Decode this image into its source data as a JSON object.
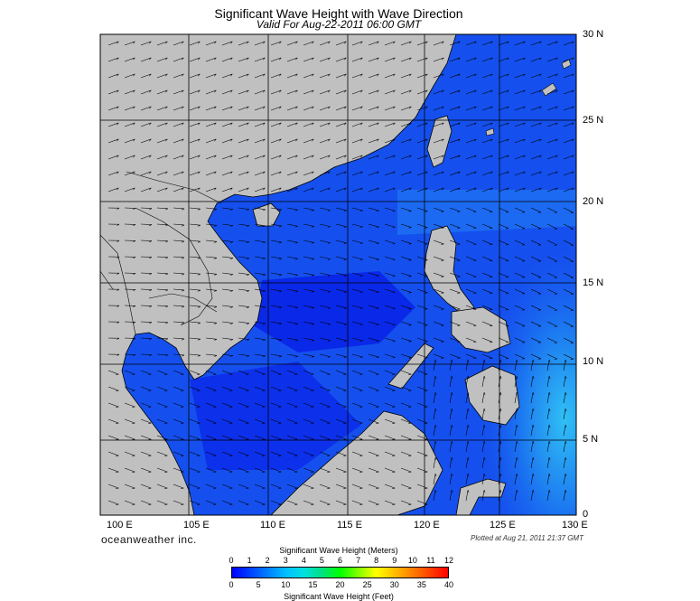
{
  "title": "Significant Wave Height with Wave Direction",
  "subtitle": "Valid For Aug-22-2011 06:00 GMT",
  "latitude_labels": [
    "30 N",
    "25 N",
    "20 N",
    "15 N",
    "10 N",
    "5 N",
    "0"
  ],
  "longitude_labels": [
    "100 E",
    "105 E",
    "110 E",
    "115 E",
    "120 E",
    "125 E",
    "130 E"
  ],
  "brand": "oceanweather inc.",
  "plotted": "Plotted at Aug 21, 2011 21:37 GMT",
  "colorbar": {
    "title_top": "Significant Wave Height (Meters)",
    "title_bottom": "Significant Wave Height (Feet)",
    "meters_ticks": [
      "0",
      "1",
      "2",
      "3",
      "4",
      "5",
      "6",
      "7",
      "8",
      "9",
      "10",
      "11",
      "12"
    ],
    "feet_ticks": [
      "0",
      "5",
      "10",
      "15",
      "20",
      "25",
      "30",
      "35",
      "40"
    ],
    "colors": [
      "#0000ff",
      "#0040ff",
      "#0080ff",
      "#00c0ff",
      "#00e0e0",
      "#00e080",
      "#00ff00",
      "#80ff00",
      "#ffff00",
      "#ffc000",
      "#ff8000",
      "#ff4000",
      "#ff0000"
    ]
  },
  "colors": {
    "land": "#c0c0c0",
    "sea_deep": "#0a1ee6",
    "sea_mid": "#1a5cf0",
    "sea_light": "#2aa0f5",
    "arrows": "#000000"
  }
}
